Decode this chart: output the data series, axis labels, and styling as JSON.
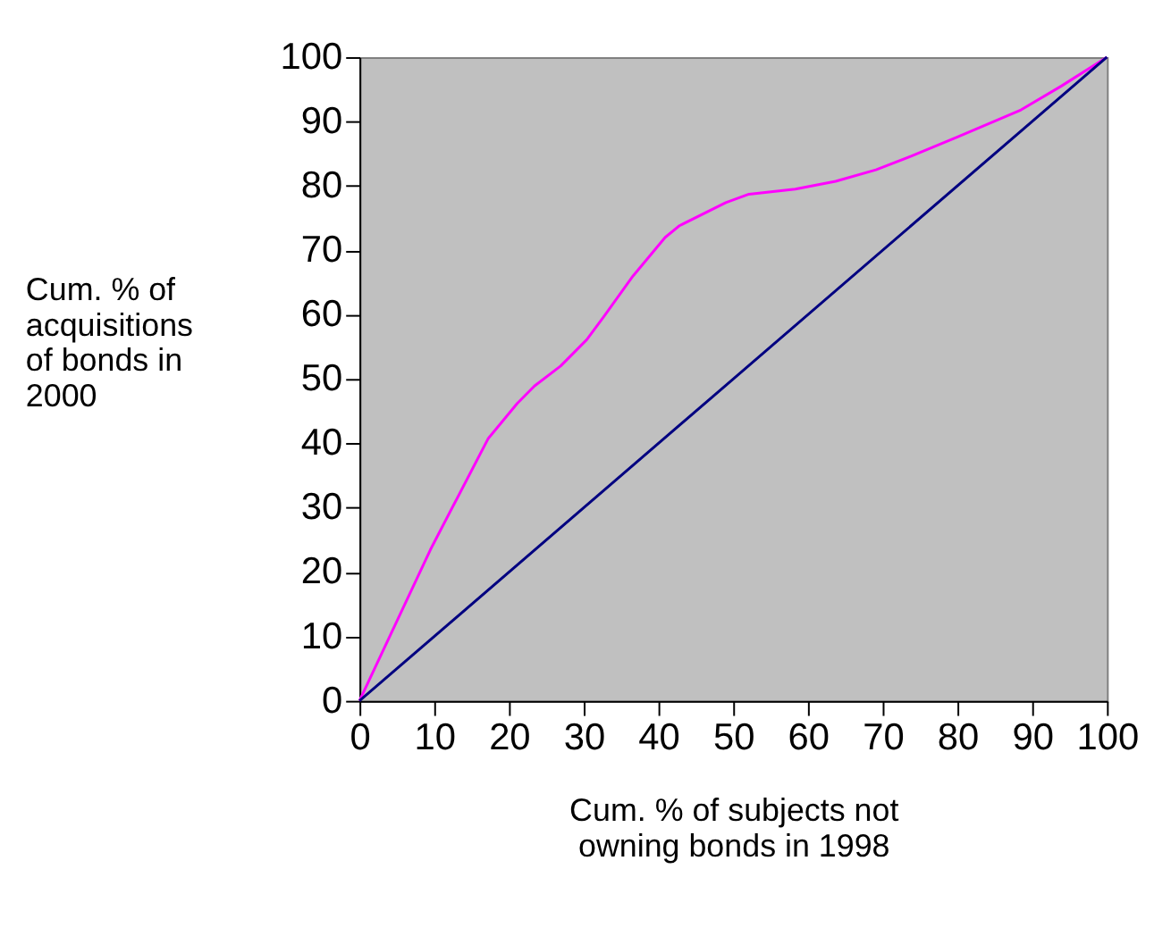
{
  "chart_data": {
    "type": "line",
    "xlabel": "Cum. % of subjects not owning bonds in 1998",
    "ylabel": "Cum. % of acquisitions of bonds in 2000",
    "xlim": [
      0,
      100
    ],
    "ylim": [
      0,
      100
    ],
    "xticks": [
      0,
      10,
      20,
      30,
      40,
      50,
      60,
      70,
      80,
      90,
      100
    ],
    "yticks": [
      0,
      10,
      20,
      30,
      40,
      50,
      60,
      70,
      80,
      90,
      100
    ],
    "grid": false,
    "marker": "none",
    "line_style": "solid",
    "series": [
      {
        "color": "#ff00ff",
        "x": [
          0,
          9.5,
          17.2,
          21.1,
          23.4,
          26.9,
          30.4,
          32.7,
          36.6,
          40.9,
          42.8,
          49,
          52.1,
          58.3,
          63.7,
          69.1,
          73.8,
          80,
          88.5,
          93.9,
          100
        ],
        "values": [
          0,
          23.5,
          40.7,
          46.2,
          48.9,
          52,
          56.1,
          59.7,
          66,
          72,
          73.8,
          77.4,
          78.7,
          79.5,
          80.7,
          82.5,
          84.6,
          87.6,
          91.8,
          95.5,
          100
        ]
      },
      {
        "color": "#000080",
        "x": [
          0,
          50,
          100
        ],
        "values": [
          0,
          50,
          100
        ]
      }
    ]
  }
}
